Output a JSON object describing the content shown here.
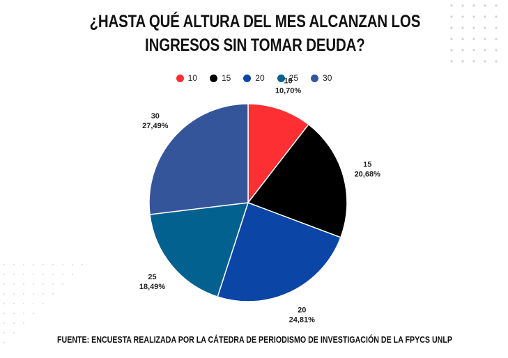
{
  "title_lines": [
    "¿HASTA QUÉ ALTURA DEL MES ALCANZAN LOS",
    "INGRESOS SIN TOMAR DEUDA?"
  ],
  "footer": "FUENTE: ENCUESTA REALIZADA POR LA CÁTEDRA DE PERIODISMO DE INVESTIGACIÓN DE LA FPYCS UNLP",
  "chart_data": {
    "type": "pie",
    "title": "¿HASTA QUÉ ALTURA DEL MES ALCANZAN LOS INGRESOS SIN TOMAR DEUDA?",
    "legend_position": "top",
    "slices": [
      {
        "label": "10",
        "value": 10.7,
        "percent_text": "10,70%",
        "color": "#fe2f33"
      },
      {
        "label": "15",
        "value": 20.68,
        "percent_text": "20,68%",
        "color": "#000000"
      },
      {
        "label": "20",
        "value": 24.81,
        "percent_text": "24,81%",
        "color": "#0b45a6"
      },
      {
        "label": "25",
        "value": 18.49,
        "percent_text": "18,49%",
        "color": "#03618f"
      },
      {
        "label": "30",
        "value": 27.49,
        "percent_text": "27,49%",
        "color": "#35559b"
      }
    ]
  }
}
